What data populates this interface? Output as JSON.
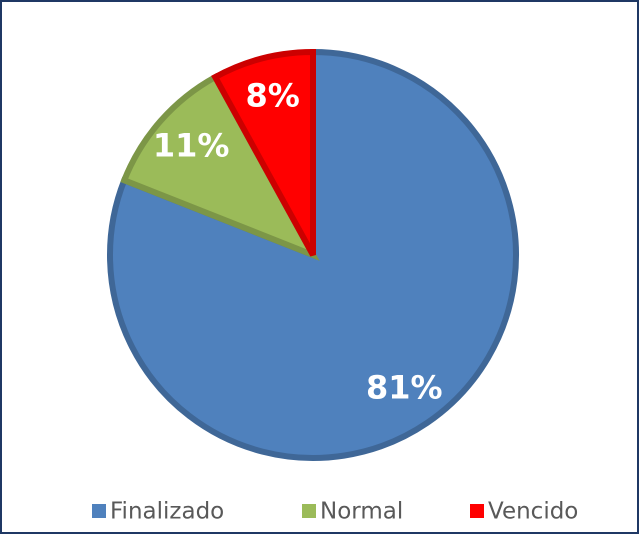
{
  "chart_data": {
    "type": "pie",
    "categories": [
      "Finalizado",
      "Normal",
      "Vencido"
    ],
    "values": [
      81,
      11,
      8
    ],
    "value_labels": [
      "81%",
      "11%",
      "8%"
    ],
    "colors": [
      "#4f81bd",
      "#9bbb59",
      "#ff0000"
    ],
    "legend": "bottom"
  }
}
